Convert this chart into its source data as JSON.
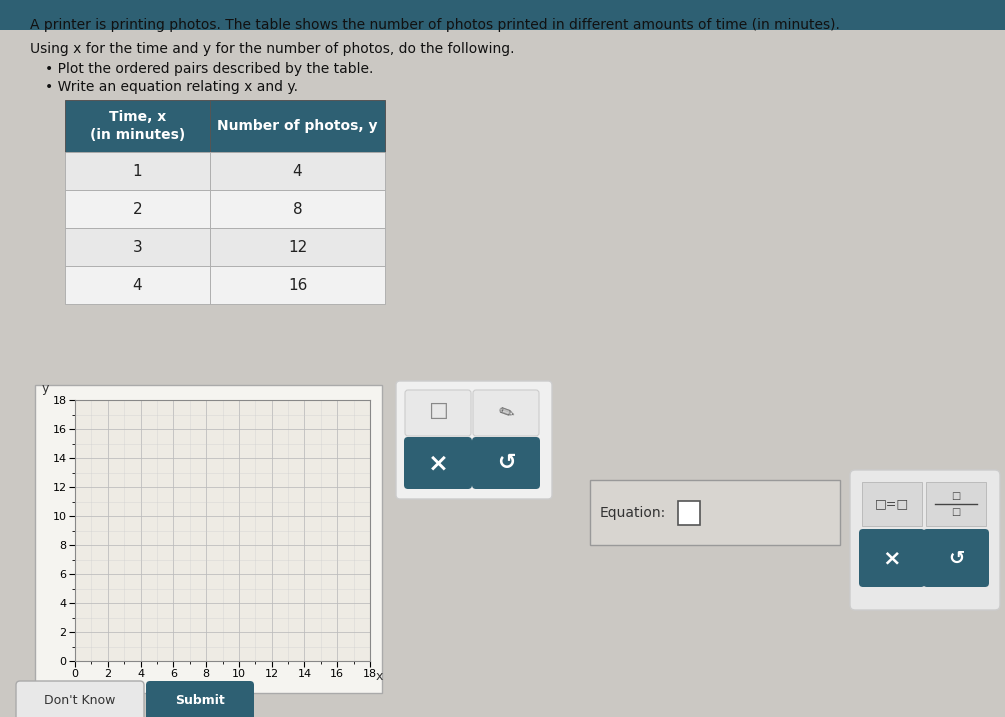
{
  "title_line1": "A printer is printing photos. The table shows the number of photos printed in different amounts of time (in minutes).",
  "title_line2": "Using x for the time and y for the number of photos, do the following.",
  "bullet1": "Plot the ordered pairs described by the table.",
  "bullet2": "Write an equation relating x and y.",
  "table_headers": [
    "Time, x\n(in minutes)",
    "Number of photos, y"
  ],
  "table_data": [
    [
      1,
      4
    ],
    [
      2,
      8
    ],
    [
      3,
      12
    ],
    [
      4,
      16
    ]
  ],
  "table_header_bg": "#2e6073",
  "table_header_color": "#ffffff",
  "table_row_bg1": "#e8e8e8",
  "table_row_bg2": "#f2f2f2",
  "graph_xlim": [
    0,
    18
  ],
  "graph_ylim": [
    0,
    18
  ],
  "graph_xticks": [
    0,
    2,
    4,
    6,
    8,
    10,
    12,
    14,
    16,
    18
  ],
  "graph_yticks": [
    0,
    2,
    4,
    6,
    8,
    10,
    12,
    14,
    16,
    18
  ],
  "graph_xlabel": "x",
  "graph_ylabel": "y",
  "graph_bg": "#eeebe4",
  "graph_grid_color": "#bbbbbb",
  "graph_minor_grid_color": "#cccccc",
  "equation_label": "Equation:",
  "button_bg": "#2e6073",
  "button_color": "#ffffff",
  "page_bg": "#cbc8c3",
  "toolbar_bg": "#2e6073",
  "font_size_title": 10,
  "font_size_table_header": 10,
  "font_size_table_data": 11,
  "font_size_graph": 8
}
